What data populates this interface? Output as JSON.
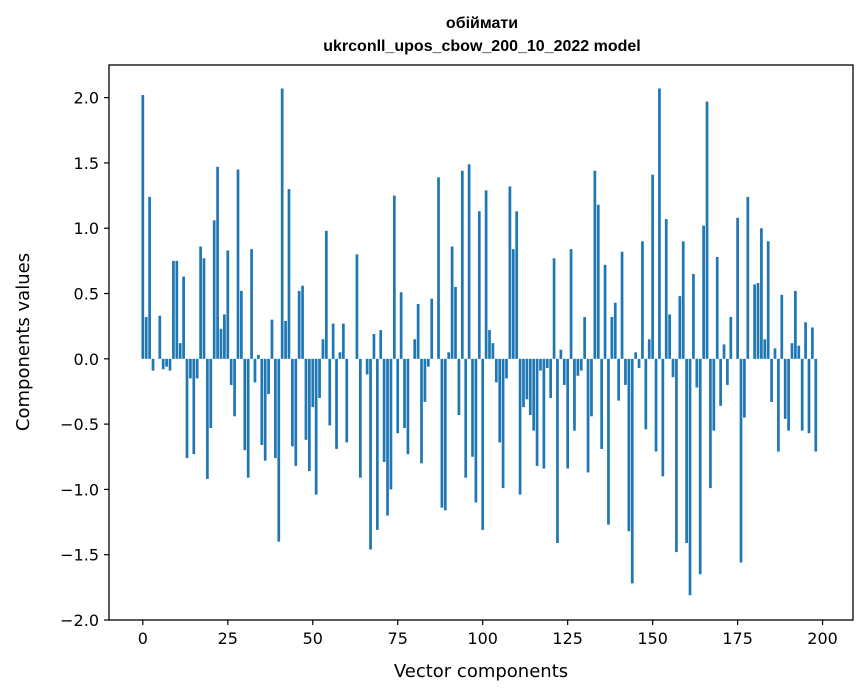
{
  "chart_data": {
    "type": "bar",
    "title": "обіймати",
    "subtitle": "ukrconll_upos_cbow_200_10_2022 model",
    "xlabel": "Vector components",
    "ylabel": "Components values",
    "xlim": [
      -9.95,
      208.95
    ],
    "ylim": [
      -2.0,
      2.25
    ],
    "xticks": [
      0,
      25,
      50,
      75,
      100,
      125,
      150,
      175,
      200
    ],
    "yticks": [
      -2.0,
      -1.5,
      -1.0,
      -0.5,
      0.0,
      0.5,
      1.0,
      1.5,
      2.0
    ],
    "ytick_labels": [
      "−2.0",
      "−1.5",
      "−1.0",
      "−0.5",
      "0.0",
      "0.5",
      "1.0",
      "1.5",
      "2.0"
    ],
    "bar_color": "#1f77b4",
    "grid": false,
    "values": [
      2.02,
      0.32,
      1.24,
      -0.09,
      0.0,
      0.33,
      -0.08,
      -0.06,
      -0.09,
      0.75,
      0.75,
      0.12,
      0.63,
      -0.76,
      -0.15,
      -0.73,
      -0.15,
      0.86,
      0.77,
      -0.92,
      -0.53,
      1.06,
      1.47,
      0.23,
      0.34,
      0.83,
      -0.2,
      -0.44,
      1.45,
      0.52,
      -0.7,
      -0.91,
      0.84,
      -0.18,
      0.03,
      -0.66,
      -0.78,
      -0.27,
      0.3,
      -0.76,
      -1.4,
      2.07,
      0.29,
      1.3,
      -0.67,
      -0.82,
      0.52,
      0.56,
      -0.62,
      -0.86,
      -0.37,
      -1.04,
      -0.3,
      0.15,
      0.98,
      -0.51,
      0.27,
      -0.69,
      0.05,
      0.27,
      -0.64,
      0.0,
      0.0,
      0.8,
      -0.91,
      0.0,
      -0.12,
      -1.46,
      0.19,
      -1.31,
      0.22,
      -0.79,
      -1.2,
      -1.0,
      1.25,
      -0.57,
      0.51,
      -0.53,
      -0.73,
      0.0,
      0.15,
      0.42,
      -0.8,
      -0.33,
      -0.06,
      0.46,
      0.0,
      1.39,
      -1.14,
      -1.16,
      0.05,
      0.86,
      0.55,
      -0.43,
      1.44,
      -0.91,
      1.49,
      -0.75,
      -1.1,
      1.13,
      -1.31,
      1.29,
      0.22,
      0.12,
      -0.18,
      -0.64,
      -0.99,
      -0.15,
      1.32,
      0.84,
      1.13,
      -1.04,
      -0.37,
      -0.31,
      -0.43,
      -0.55,
      -0.82,
      -0.09,
      -0.84,
      -0.07,
      -0.3,
      0.77,
      -1.41,
      0.07,
      -0.2,
      -0.84,
      0.84,
      -0.55,
      -0.13,
      -0.09,
      0.32,
      -0.87,
      -0.44,
      1.44,
      1.18,
      -0.69,
      0.72,
      -1.27,
      0.32,
      0.43,
      -0.32,
      0.82,
      -0.2,
      -1.32,
      -1.72,
      0.05,
      -0.07,
      0.9,
      -0.54,
      0.15,
      1.41,
      -0.71,
      2.07,
      -0.9,
      1.07,
      0.34,
      -0.14,
      -1.48,
      0.48,
      0.9,
      -1.41,
      -1.81,
      0.65,
      -0.22,
      -1.65,
      1.02,
      1.97,
      -0.99,
      -0.55,
      0.78,
      -0.36,
      0.11,
      -0.2,
      0.32,
      0.0,
      1.08,
      -1.56,
      -0.45,
      1.24,
      0.0,
      0.57,
      0.58,
      1.0,
      0.15,
      0.9,
      -0.33,
      0.08,
      -0.71,
      0.49,
      -0.46,
      -0.55,
      0.12,
      0.52,
      0.1,
      -0.55,
      0.28,
      -0.57,
      0.24,
      -0.71
    ]
  }
}
